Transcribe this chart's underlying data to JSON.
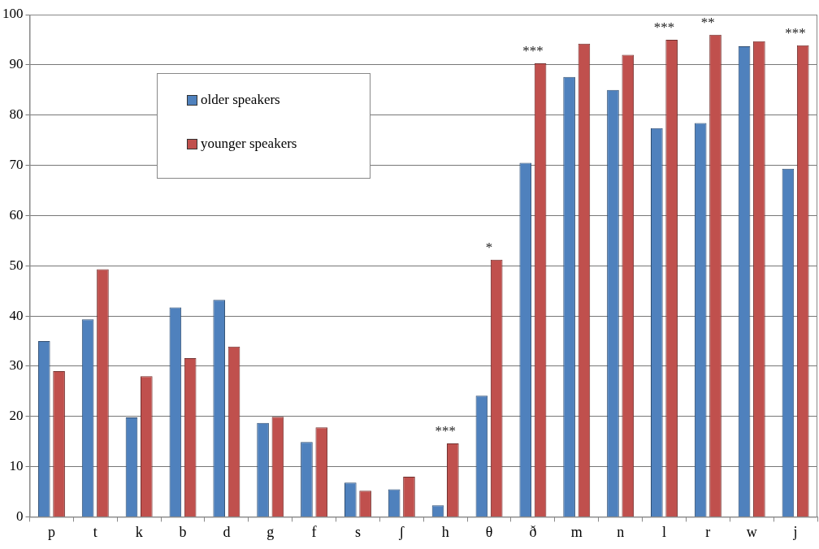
{
  "chart_data": {
    "type": "bar",
    "categories": [
      "p",
      "t",
      "k",
      "b",
      "d",
      "g",
      "f",
      "s",
      "ʃ",
      "h",
      "θ",
      "ð",
      "m",
      "n",
      "l",
      "r",
      "w",
      "j"
    ],
    "series": [
      {
        "name": "older speakers",
        "color": "#4f81bd",
        "values": [
          35,
          39.3,
          19.8,
          41.7,
          43.2,
          18.7,
          14.9,
          6.8,
          5.5,
          2.3,
          24.1,
          70.5,
          87.6,
          85,
          77.4,
          78.4,
          93.7,
          69.3
        ]
      },
      {
        "name": "younger speakers",
        "color": "#c0504d",
        "values": [
          29,
          49.3,
          28,
          31.6,
          33.9,
          19.9,
          17.8,
          5.2,
          8,
          14.6,
          51.2,
          90.3,
          94.2,
          92,
          95,
          96,
          94.7,
          93.9
        ]
      }
    ],
    "ylim": [
      0,
      100
    ],
    "yticks": [
      0,
      10,
      20,
      30,
      40,
      50,
      60,
      70,
      80,
      90,
      100
    ],
    "grid": "y",
    "legend": "top left",
    "annotations": [
      {
        "text": "***",
        "x": "h",
        "y": 14.6
      },
      {
        "text": "*",
        "x": "θ",
        "y": 51.2
      },
      {
        "text": "***",
        "x": "ð",
        "y": 90.3
      },
      {
        "text": "***",
        "x": "l",
        "y": 95
      },
      {
        "text": "**",
        "x": "r",
        "y": 96
      },
      {
        "text": "***",
        "x": "j",
        "y": 93.9
      }
    ]
  }
}
